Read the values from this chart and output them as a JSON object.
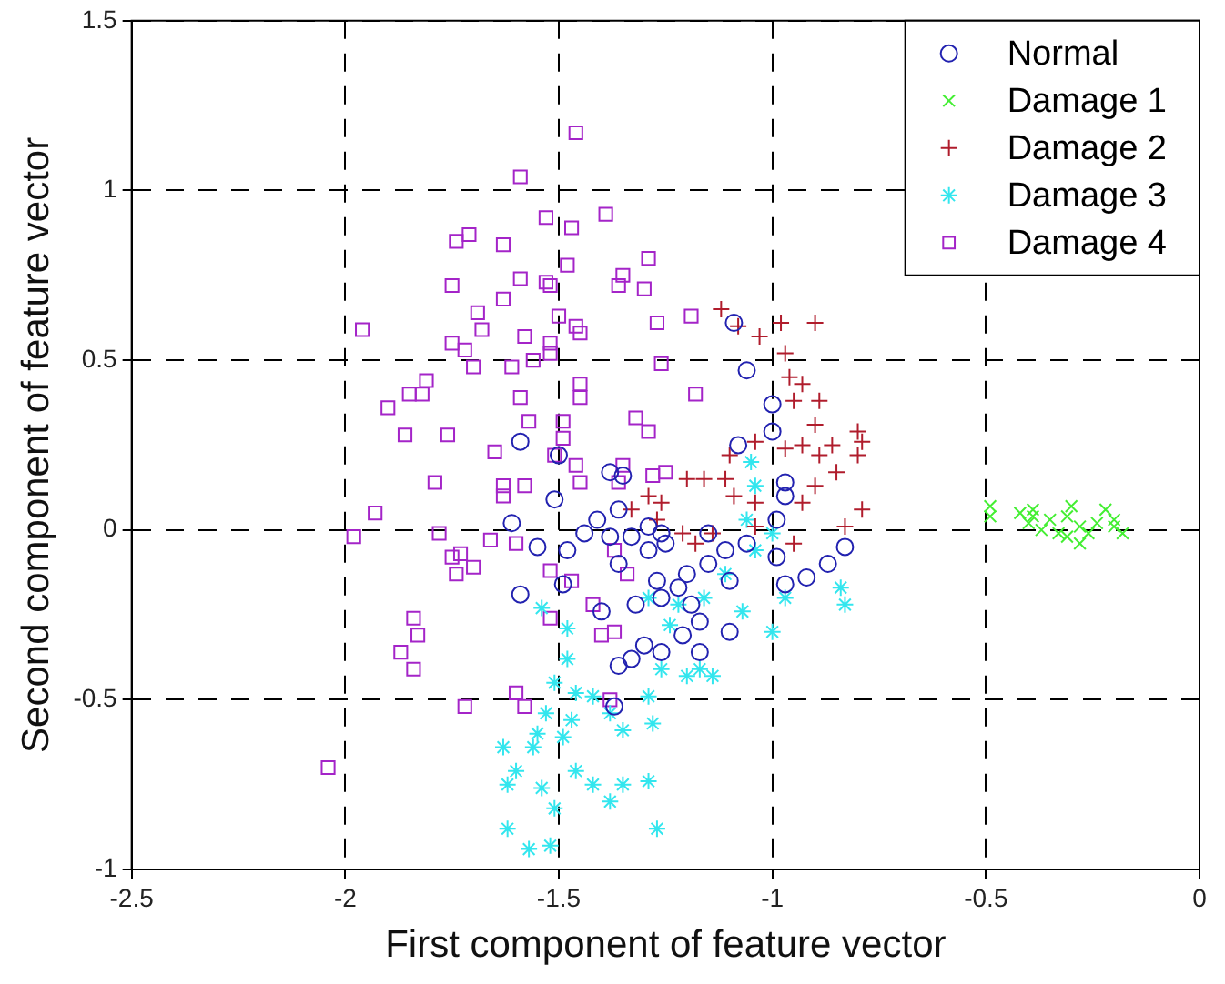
{
  "chart_data": {
    "type": "scatter",
    "xlabel": "First component of feature vector",
    "ylabel": "Second component of feature vector",
    "xlim": [
      -2.5,
      0
    ],
    "xticks": [
      -2.5,
      -2,
      -1.5,
      -1,
      -0.5,
      0
    ],
    "ylim": [
      -1,
      1.5
    ],
    "yticks": [
      -1,
      -0.5,
      0,
      0.5,
      1,
      1.5
    ],
    "grid": true,
    "legend": "top right",
    "series": [
      {
        "name": "Normal",
        "color": "#2222b0",
        "marker": "circle",
        "x": [
          -1.59,
          -1.5,
          -1.51,
          -1.61,
          -1.55,
          -1.59,
          -1.49,
          -1.48,
          -1.44,
          -1.41,
          -1.38,
          -1.35,
          -1.36,
          -1.38,
          -1.36,
          -1.33,
          -1.29,
          -1.25,
          -1.27,
          -1.26,
          -1.22,
          -1.19,
          -1.2,
          -1.15,
          -1.1,
          -1.11,
          -1.06,
          -1.1,
          -1.17,
          -1.21,
          -1.26,
          -1.3,
          -1.33,
          -1.36,
          -1.37,
          -1.4,
          -1.09,
          -1.06,
          -1.0,
          -1.08,
          -1.0,
          -0.97,
          -0.97,
          -0.99,
          -0.99,
          -0.97,
          -0.92,
          -0.87,
          -0.83,
          -1.15,
          -1.26,
          -1.29,
          -1.32,
          -1.17
        ],
        "values": [
          0.26,
          0.22,
          0.09,
          0.02,
          -0.05,
          -0.19,
          -0.16,
          -0.06,
          -0.01,
          0.03,
          0.17,
          0.16,
          0.06,
          -0.02,
          -0.1,
          -0.02,
          -0.06,
          -0.04,
          -0.15,
          -0.2,
          -0.17,
          -0.22,
          -0.13,
          -0.1,
          -0.15,
          -0.06,
          -0.04,
          -0.3,
          -0.36,
          -0.31,
          -0.36,
          -0.34,
          -0.38,
          -0.4,
          -0.52,
          -0.24,
          0.61,
          0.47,
          0.37,
          0.25,
          0.29,
          0.14,
          0.1,
          0.03,
          -0.08,
          -0.16,
          -0.14,
          -0.1,
          -0.05,
          -0.01,
          -0.01,
          0.01,
          -0.22,
          -0.27
        ]
      },
      {
        "name": "Damage 1",
        "color": "#44ee33",
        "marker": "x",
        "x": [
          -0.49,
          -0.49,
          -0.42,
          -0.39,
          -0.35,
          -0.31,
          -0.28,
          -0.24,
          -0.2,
          -0.18,
          -0.28,
          -0.33,
          -0.39,
          -0.22,
          -0.3,
          -0.37,
          -0.26,
          -0.4,
          -0.31,
          -0.2
        ],
        "values": [
          0.07,
          0.04,
          0.05,
          0.04,
          0.03,
          0.04,
          0.01,
          0.02,
          0.01,
          -0.01,
          -0.04,
          -0.01,
          0.06,
          0.06,
          0.07,
          0.0,
          -0.01,
          0.02,
          -0.02,
          0.03
        ]
      },
      {
        "name": "Damage 2",
        "color": "#b01c2c",
        "marker": "plus",
        "x": [
          -1.12,
          -1.08,
          -1.03,
          -0.98,
          -0.9,
          -0.97,
          -0.96,
          -0.93,
          -0.89,
          -0.95,
          -0.9,
          -0.93,
          -0.89,
          -0.86,
          -0.8,
          -0.79,
          -0.8,
          -0.85,
          -0.9,
          -0.93,
          -0.79,
          -0.83,
          -0.95,
          -1.04,
          -1.04,
          -1.09,
          -1.11,
          -1.1,
          -1.04,
          -0.97,
          -1.16,
          -1.2,
          -1.26,
          -1.29,
          -1.33,
          -1.21,
          -1.18,
          -1.14,
          -1.27
        ],
        "values": [
          0.65,
          0.6,
          0.57,
          0.61,
          0.61,
          0.52,
          0.45,
          0.43,
          0.38,
          0.38,
          0.31,
          0.25,
          0.22,
          0.25,
          0.29,
          0.26,
          0.22,
          0.17,
          0.13,
          0.08,
          0.06,
          0.01,
          -0.04,
          0.01,
          0.08,
          0.1,
          0.15,
          0.22,
          0.26,
          0.24,
          0.15,
          0.15,
          0.08,
          0.1,
          0.06,
          -0.01,
          -0.04,
          -0.01,
          0.03
        ]
      },
      {
        "name": "Damage 3",
        "color": "#33e6ee",
        "marker": "cross",
        "x": [
          -1.05,
          -1.04,
          -1.06,
          -1.0,
          -1.04,
          -1.11,
          -1.16,
          -1.07,
          -1.0,
          -0.84,
          -0.83,
          -0.97,
          -1.22,
          -1.24,
          -1.17,
          -1.14,
          -1.2,
          -1.26,
          -1.29,
          -1.28,
          -1.35,
          -1.38,
          -1.42,
          -1.46,
          -1.48,
          -1.51,
          -1.47,
          -1.49,
          -1.53,
          -1.55,
          -1.56,
          -1.63,
          -1.6,
          -1.62,
          -1.54,
          -1.46,
          -1.42,
          -1.35,
          -1.38,
          -1.29,
          -1.27,
          -1.51,
          -1.62,
          -1.57,
          -1.52,
          -1.54,
          -1.48,
          -1.29
        ],
        "values": [
          0.2,
          0.13,
          0.03,
          -0.01,
          -0.06,
          -0.13,
          -0.2,
          -0.24,
          -0.3,
          -0.17,
          -0.22,
          -0.2,
          -0.22,
          -0.28,
          -0.41,
          -0.43,
          -0.43,
          -0.41,
          -0.49,
          -0.57,
          -0.59,
          -0.54,
          -0.49,
          -0.48,
          -0.38,
          -0.45,
          -0.56,
          -0.61,
          -0.54,
          -0.6,
          -0.64,
          -0.64,
          -0.71,
          -0.75,
          -0.76,
          -0.71,
          -0.75,
          -0.75,
          -0.8,
          -0.74,
          -0.88,
          -0.82,
          -0.88,
          -0.94,
          -0.93,
          -0.23,
          -0.29,
          -0.2
        ]
      },
      {
        "name": "Damage 4",
        "color": "#a424c8",
        "marker": "square",
        "x": [
          -1.46,
          -1.59,
          -1.53,
          -1.47,
          -1.39,
          -1.74,
          -1.71,
          -1.63,
          -1.53,
          -1.52,
          -1.48,
          -1.59,
          -1.75,
          -1.96,
          -1.69,
          -1.63,
          -1.68,
          -1.75,
          -1.72,
          -1.7,
          -1.81,
          -1.85,
          -1.9,
          -1.82,
          -1.61,
          -1.56,
          -1.52,
          -1.58,
          -1.52,
          -1.46,
          -1.5,
          -1.45,
          -1.36,
          -1.3,
          -1.35,
          -1.29,
          -1.27,
          -1.19,
          -1.26,
          -1.18,
          -1.45,
          -1.45,
          -1.32,
          -1.29,
          -1.59,
          -1.57,
          -1.49,
          -1.49,
          -1.65,
          -1.76,
          -1.86,
          -1.79,
          -1.63,
          -1.63,
          -1.58,
          -1.51,
          -1.46,
          -1.45,
          -1.35,
          -1.36,
          -1.28,
          -1.25,
          -1.93,
          -1.98,
          -1.78,
          -1.75,
          -1.73,
          -1.74,
          -1.7,
          -1.66,
          -1.6,
          -1.52,
          -1.47,
          -1.42,
          -1.4,
          -1.37,
          -1.52,
          -1.84,
          -1.83,
          -1.87,
          -1.84,
          -1.72,
          -1.6,
          -1.58,
          -1.38,
          -2.04,
          -1.37,
          -1.34
        ],
        "values": [
          1.17,
          1.04,
          0.92,
          0.89,
          0.93,
          0.85,
          0.87,
          0.84,
          0.73,
          0.72,
          0.78,
          0.74,
          0.72,
          0.59,
          0.64,
          0.68,
          0.59,
          0.55,
          0.53,
          0.48,
          0.44,
          0.4,
          0.36,
          0.4,
          0.48,
          0.5,
          0.52,
          0.57,
          0.55,
          0.6,
          0.63,
          0.58,
          0.72,
          0.71,
          0.75,
          0.8,
          0.61,
          0.63,
          0.49,
          0.4,
          0.43,
          0.39,
          0.33,
          0.29,
          0.39,
          0.32,
          0.32,
          0.27,
          0.23,
          0.28,
          0.28,
          0.14,
          0.13,
          0.1,
          0.13,
          0.22,
          0.19,
          0.14,
          0.19,
          0.14,
          0.16,
          0.17,
          0.05,
          -0.02,
          -0.01,
          -0.08,
          -0.07,
          -0.13,
          -0.11,
          -0.03,
          -0.04,
          -0.12,
          -0.15,
          -0.22,
          -0.31,
          -0.3,
          -0.26,
          -0.26,
          -0.31,
          -0.36,
          -0.41,
          -0.52,
          -0.48,
          -0.52,
          -0.5,
          -0.7,
          -0.06,
          -0.13
        ]
      }
    ]
  }
}
